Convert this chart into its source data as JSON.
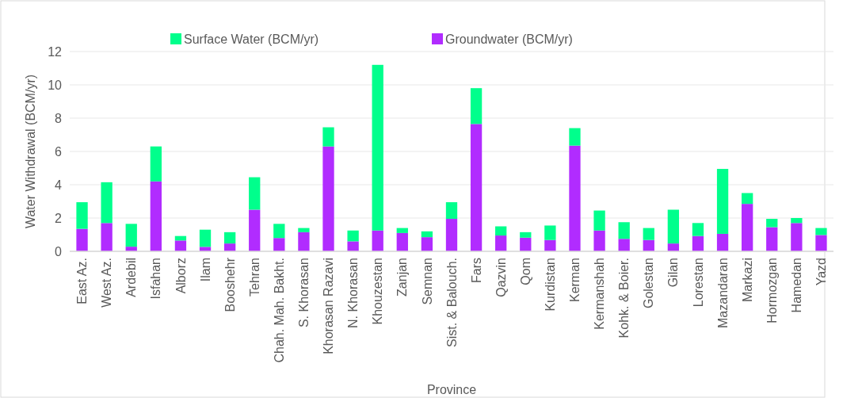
{
  "chart_data": {
    "type": "bar",
    "stacked": true,
    "xlabel": "Province",
    "ylabel": "Water Withdrawal (BCM/yr)",
    "categories": [
      "East Az.",
      "West Az.",
      "Ardebil",
      "Isfahan",
      "Alborz",
      "Ilam",
      "Booshehr",
      "Tehran",
      "Chah. Mah. Bakht.",
      "S. Khorasan",
      "Khorasan Razavi",
      "N. Khorasan",
      "Khouzestan",
      "Zanjan",
      "Semnan",
      "Sist. & Balouch.",
      "Fars",
      "Qazvin",
      "Qom",
      "Kurdistan",
      "Kerman",
      "Kermanshah",
      "Kohk. & Boier.",
      "Golestan",
      "Gilan",
      "Lorestan",
      "Mazandaran",
      "Markazi",
      "Hormozgan",
      "Hamedan",
      "Yazd"
    ],
    "series": [
      {
        "name": "Groundwater (BCM/yr)",
        "color": "#b12cff",
        "values": [
          1.35,
          1.7,
          0.28,
          4.2,
          0.65,
          0.27,
          0.47,
          2.5,
          0.8,
          1.15,
          6.3,
          0.6,
          1.25,
          1.1,
          0.85,
          1.95,
          7.65,
          0.95,
          0.82,
          0.68,
          6.35,
          1.25,
          0.75,
          0.68,
          0.47,
          0.92,
          1.05,
          2.85,
          1.45,
          1.7,
          0.98
        ]
      },
      {
        "name": "Surface Water (BCM/yr)",
        "color": "#00ff8c",
        "values": [
          1.6,
          2.45,
          1.37,
          2.1,
          0.27,
          1.03,
          0.68,
          1.95,
          0.85,
          0.25,
          1.15,
          0.65,
          9.95,
          0.3,
          0.35,
          1.0,
          2.15,
          0.55,
          0.33,
          0.87,
          1.05,
          1.2,
          1.0,
          0.72,
          2.03,
          0.78,
          3.9,
          0.65,
          0.5,
          0.3,
          0.42
        ]
      }
    ],
    "ylim": [
      0,
      12
    ],
    "yticks": [
      0,
      2,
      4,
      6,
      8,
      10,
      12
    ],
    "grid": "y",
    "legend": "top"
  }
}
